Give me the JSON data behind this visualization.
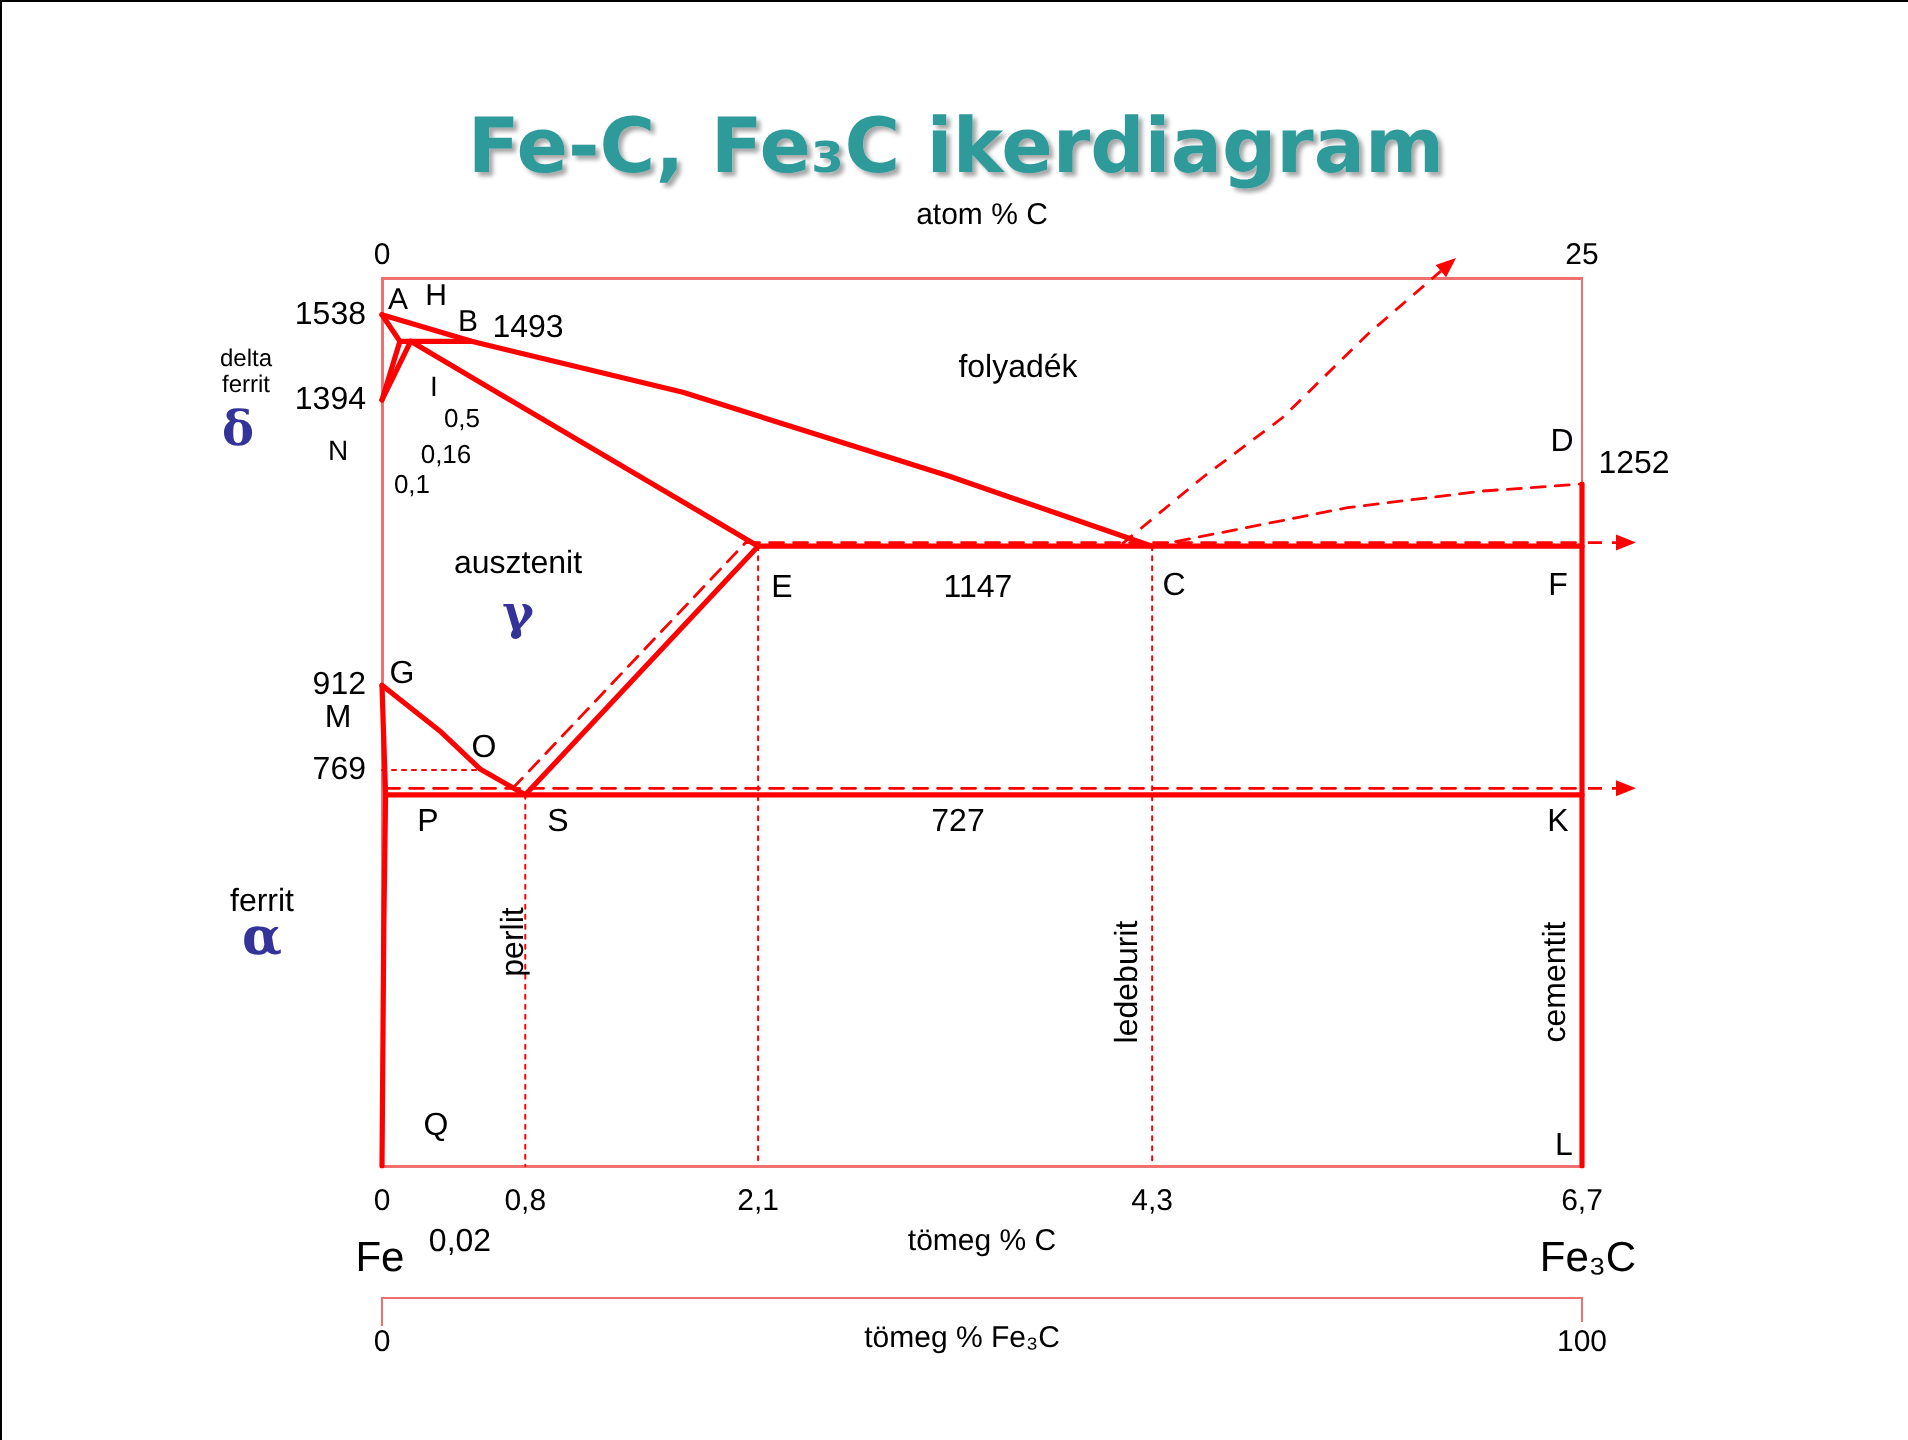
{
  "chart_data": {
    "type": "line",
    "title": "Fe-C, Fe₃C ikerdiagram",
    "xlabel": "tömeg % C",
    "x2label": "atom % C",
    "xlim": [
      0,
      6.7
    ],
    "xticks": [
      0,
      {
        "value": 0.8,
        "label": "0,8"
      },
      {
        "value": 2.1,
        "label": "2,1"
      },
      {
        "value": 4.3,
        "label": "4,3"
      },
      {
        "value": 6.7,
        "label": "6,7"
      }
    ],
    "x2lim": [
      0,
      25
    ],
    "x2ticks": [
      0,
      25
    ],
    "ylim": [
      100,
      1600
    ],
    "yticks": [
      1538,
      1394,
      912,
      769
    ],
    "grid": false,
    "marker": "none",
    "series": [
      {
        "color": "#ff0000",
        "line_style": "solid",
        "x": [
          0,
          0.5,
          1.68,
          3.16,
          4.3
        ],
        "values": [
          1538,
          1493,
          1407,
          1266,
          1147
        ]
      },
      {
        "color": "#ff0000",
        "line_style": "solid",
        "x": [
          0,
          0.1
        ],
        "values": [
          1538,
          1493
        ]
      },
      {
        "color": "#ff0000",
        "line_style": "solid",
        "x": [
          0.1,
          0.5
        ],
        "values": [
          1493,
          1493
        ]
      },
      {
        "color": "#ff0000",
        "line_style": "solid",
        "x": [
          0,
          0.1
        ],
        "values": [
          1394,
          1493
        ]
      },
      {
        "color": "#ff0000",
        "line_style": "solid",
        "x": [
          0,
          0.16
        ],
        "values": [
          1394,
          1493
        ]
      },
      {
        "color": "#ff0000",
        "line_style": "solid",
        "x": [
          0.16,
          2.1
        ],
        "values": [
          1493,
          1147
        ]
      },
      {
        "color": "#ff0000",
        "line_style": "solid",
        "x": [
          2.1,
          6.7
        ],
        "values": [
          1147,
          1147
        ]
      },
      {
        "color": "#ff0000",
        "line_style": "dashed",
        "x": [
          4.3,
          5.39,
          6.14,
          6.7
        ],
        "values": [
          1147,
          1212,
          1240,
          1252
        ]
      },
      {
        "color": "#ff0000",
        "line_style": "solid",
        "x": [
          6.7,
          6.7
        ],
        "values": [
          1252,
          100
        ]
      },
      {
        "color": "#ff0000",
        "line_style": "solid",
        "x": [
          0,
          0.33,
          0.55,
          0.8
        ],
        "values": [
          912,
          833,
          770,
          727
        ]
      },
      {
        "color": "#ff0000",
        "line_style": "solid",
        "x": [
          0,
          0.02,
          0.01,
          0
        ],
        "values": [
          912,
          727,
          500,
          100
        ]
      },
      {
        "color": "#ff0000",
        "line_style": "solid",
        "x": [
          0.8,
          2.1
        ],
        "values": [
          727,
          1147
        ]
      },
      {
        "color": "#ff0000",
        "line_style": "solid",
        "x": [
          0.02,
          6.7
        ],
        "values": [
          727,
          727
        ]
      },
      {
        "color": "#ff0000",
        "line_style": "dashed",
        "x": [
          0.73,
          2.03
        ],
        "values": [
          738,
          1153
        ]
      },
      {
        "color": "#ff0000",
        "line_style": "dashed",
        "x": [
          2.03,
          6.7
        ],
        "values": [
          1153,
          1153
        ]
      },
      {
        "color": "#ff0000",
        "line_style": "dashed",
        "x": [
          0.02,
          6.7
        ],
        "values": [
          738,
          738
        ]
      },
      {
        "color": "#ff0000",
        "line_style": "dotted",
        "x": [
          0,
          0.55
        ],
        "values": [
          769,
          769
        ]
      },
      {
        "color": "#ff0000",
        "line_style": "dotted",
        "x": [
          0.8,
          0.8
        ],
        "values": [
          727,
          100
        ]
      },
      {
        "color": "#ff0000",
        "line_style": "dotted",
        "x": [
          2.1,
          2.1
        ],
        "values": [
          1147,
          100
        ]
      },
      {
        "color": "#ff0000",
        "line_style": "dotted",
        "x": [
          4.3,
          4.3
        ],
        "values": [
          1147,
          100
        ]
      }
    ],
    "annotations": [
      "A",
      "H",
      "B",
      "1493",
      "I",
      "0,5",
      "0,16",
      "0,1",
      "folyadék",
      "ausztenit",
      "γ",
      "E",
      "1147",
      "C",
      "F",
      "D",
      "G",
      "O",
      "P",
      "S",
      "727",
      "K",
      "perlit",
      "ledeburit",
      "cementit",
      "Q",
      "L",
      "delta\nferrit",
      "δ",
      "N",
      "M",
      "ferrit",
      "α",
      "1252",
      "Fe",
      "0,02",
      "Fe₃C",
      "0",
      "100",
      "tömeg % Fe₃C"
    ]
  }
}
